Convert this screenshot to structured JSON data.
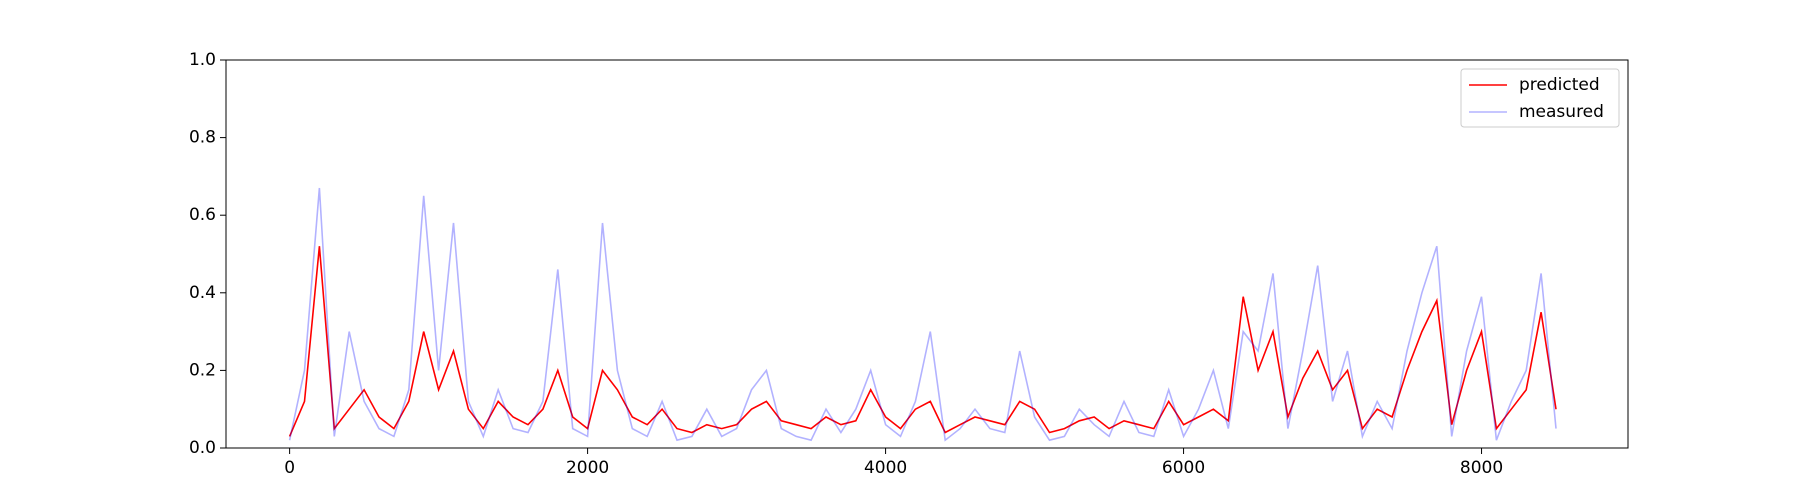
{
  "chart_data": {
    "type": "line",
    "x": [
      0,
      100,
      200,
      300,
      400,
      500,
      600,
      700,
      800,
      900,
      1000,
      1100,
      1200,
      1300,
      1400,
      1500,
      1600,
      1700,
      1800,
      1900,
      2000,
      2100,
      2200,
      2300,
      2400,
      2500,
      2600,
      2700,
      2800,
      2900,
      3000,
      3100,
      3200,
      3300,
      3400,
      3500,
      3600,
      3700,
      3800,
      3900,
      4000,
      4100,
      4200,
      4300,
      4400,
      4500,
      4600,
      4700,
      4800,
      4900,
      5000,
      5100,
      5200,
      5300,
      5400,
      5500,
      5600,
      5700,
      5800,
      5900,
      6000,
      6100,
      6200,
      6300,
      6400,
      6500,
      6600,
      6700,
      6800,
      6900,
      7000,
      7100,
      7200,
      7300,
      7400,
      7500,
      7600,
      7700,
      7800,
      7900,
      8000,
      8100,
      8200,
      8300,
      8400,
      8500
    ],
    "series": [
      {
        "name": "predicted",
        "color": "#ff0000",
        "alpha": 1,
        "values": [
          0.03,
          0.12,
          0.52,
          0.05,
          0.1,
          0.15,
          0.08,
          0.05,
          0.12,
          0.3,
          0.15,
          0.25,
          0.1,
          0.05,
          0.12,
          0.08,
          0.06,
          0.1,
          0.2,
          0.08,
          0.05,
          0.2,
          0.15,
          0.08,
          0.06,
          0.1,
          0.05,
          0.04,
          0.06,
          0.05,
          0.06,
          0.1,
          0.12,
          0.07,
          0.06,
          0.05,
          0.08,
          0.06,
          0.07,
          0.15,
          0.08,
          0.05,
          0.1,
          0.12,
          0.04,
          0.06,
          0.08,
          0.07,
          0.06,
          0.12,
          0.1,
          0.04,
          0.05,
          0.07,
          0.08,
          0.05,
          0.07,
          0.06,
          0.05,
          0.12,
          0.06,
          0.08,
          0.1,
          0.07,
          0.39,
          0.2,
          0.3,
          0.08,
          0.18,
          0.25,
          0.15,
          0.2,
          0.05,
          0.1,
          0.08,
          0.2,
          0.3,
          0.38,
          0.06,
          0.2,
          0.3,
          0.05,
          0.1,
          0.15,
          0.35,
          0.1
        ]
      },
      {
        "name": "measured",
        "color": "#0000ff",
        "alpha": 0.3,
        "values": [
          0.02,
          0.2,
          0.67,
          0.03,
          0.3,
          0.12,
          0.05,
          0.03,
          0.15,
          0.65,
          0.2,
          0.58,
          0.12,
          0.03,
          0.15,
          0.05,
          0.04,
          0.12,
          0.46,
          0.05,
          0.03,
          0.58,
          0.2,
          0.05,
          0.03,
          0.12,
          0.02,
          0.03,
          0.1,
          0.03,
          0.05,
          0.15,
          0.2,
          0.05,
          0.03,
          0.02,
          0.1,
          0.04,
          0.1,
          0.2,
          0.06,
          0.03,
          0.12,
          0.3,
          0.02,
          0.05,
          0.1,
          0.05,
          0.04,
          0.25,
          0.08,
          0.02,
          0.03,
          0.1,
          0.06,
          0.03,
          0.12,
          0.04,
          0.03,
          0.15,
          0.03,
          0.1,
          0.2,
          0.05,
          0.3,
          0.25,
          0.45,
          0.05,
          0.25,
          0.47,
          0.12,
          0.25,
          0.03,
          0.12,
          0.05,
          0.25,
          0.4,
          0.52,
          0.03,
          0.25,
          0.39,
          0.02,
          0.12,
          0.2,
          0.45,
          0.05
        ]
      }
    ],
    "xlim": [
      -427,
      8983
    ],
    "xticks": [
      0,
      2000,
      4000,
      6000,
      8000
    ],
    "ylim": [
      0,
      1
    ],
    "yticks": [
      {
        "value": 0,
        "label": "0.0"
      },
      0.2,
      0.4,
      0.6,
      0.8,
      {
        "value": 1,
        "label": "1.0"
      }
    ],
    "legend": "upper right"
  }
}
